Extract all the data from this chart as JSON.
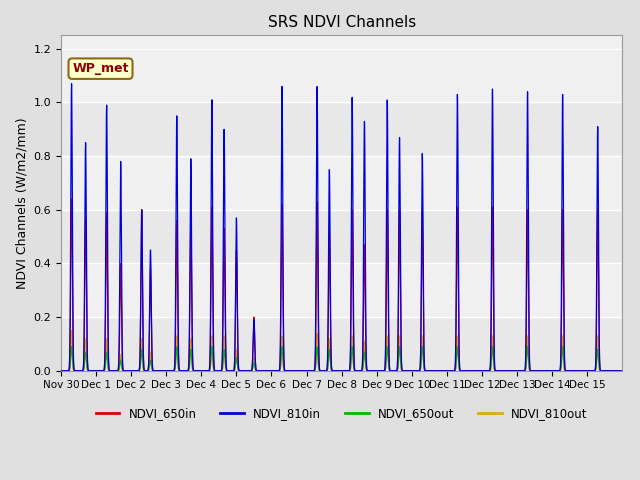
{
  "title": "SRS NDVI Channels",
  "ylabel": "NDVI Channels (W/m2/mm)",
  "bg_color": "#e0e0e0",
  "plot_bg_color": "#f0f0f0",
  "legend_entries": [
    "NDVI_650in",
    "NDVI_810in",
    "NDVI_650out",
    "NDVI_810out"
  ],
  "legend_colors": [
    "#dd0000",
    "#0000dd",
    "#00bb00",
    "#ddaa00"
  ],
  "annotation": "WP_met",
  "ylim": [
    0,
    1.25
  ],
  "xlim": [
    0,
    16
  ],
  "spike_positions": [
    0.3,
    0.7,
    1.3,
    1.7,
    2.3,
    2.55,
    3.3,
    3.7,
    4.3,
    4.65,
    5.0,
    5.5,
    6.3,
    7.3,
    7.65,
    8.3,
    8.65,
    9.3,
    9.65,
    10.3,
    11.3,
    12.3,
    13.3,
    14.3,
    15.3
  ],
  "spike_peaks_810in": [
    1.07,
    0.85,
    0.99,
    0.78,
    0.6,
    0.45,
    0.95,
    0.79,
    1.01,
    0.9,
    0.57,
    0.19,
    1.06,
    1.06,
    0.75,
    1.02,
    0.93,
    1.01,
    0.87,
    0.81,
    1.03,
    1.05,
    1.04,
    1.03,
    0.91
  ],
  "spike_peaks_650in": [
    0.64,
    0.57,
    0.59,
    0.4,
    0.6,
    0.38,
    0.56,
    0.55,
    0.61,
    0.53,
    0.45,
    0.2,
    0.62,
    0.63,
    0.52,
    0.6,
    0.47,
    0.6,
    0.6,
    0.6,
    0.61,
    0.61,
    0.6,
    0.6,
    0.6
  ],
  "spike_peaks_650out": [
    0.09,
    0.07,
    0.07,
    0.04,
    0.08,
    0.04,
    0.09,
    0.08,
    0.09,
    0.08,
    0.05,
    0.03,
    0.09,
    0.09,
    0.08,
    0.09,
    0.07,
    0.09,
    0.09,
    0.09,
    0.09,
    0.09,
    0.09,
    0.09,
    0.08
  ],
  "spike_peaks_810out": [
    0.15,
    0.12,
    0.12,
    0.06,
    0.12,
    0.07,
    0.13,
    0.12,
    0.13,
    0.13,
    0.08,
    0.05,
    0.13,
    0.14,
    0.12,
    0.13,
    0.11,
    0.13,
    0.13,
    0.13,
    0.13,
    0.13,
    0.13,
    0.13,
    0.13
  ],
  "xtick_labels": [
    "Nov 30",
    "Dec 1",
    "Dec 2",
    "Dec 3",
    "Dec 4",
    "Dec 5",
    "Dec 6",
    "Dec 7",
    "Dec 8",
    "Dec 9",
    "Dec 10",
    "Dec 11",
    "Dec 12",
    "Dec 13",
    "Dec 14",
    "Dec 15"
  ],
  "xtick_positions": [
    0,
    1,
    2,
    3,
    4,
    5,
    6,
    7,
    8,
    9,
    10,
    11,
    12,
    13,
    14,
    15
  ]
}
